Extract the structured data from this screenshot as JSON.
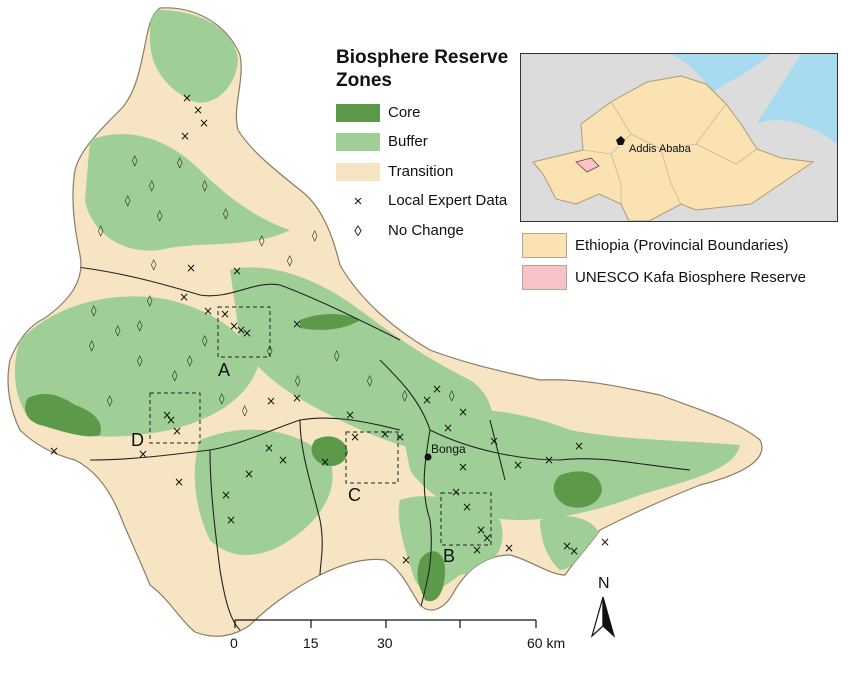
{
  "legend": {
    "title_line1": "Biosphere Reserve",
    "title_line2": "Zones",
    "items": [
      {
        "label": "Core",
        "color": "#5c9a4a"
      },
      {
        "label": "Buffer",
        "color": "#9fcf97"
      },
      {
        "label": "Transition",
        "color": "#f7e4c2"
      }
    ],
    "symbols": [
      {
        "symbol": "×",
        "label": "Local Expert Data"
      },
      {
        "symbol": "◊",
        "label": "No Change"
      }
    ]
  },
  "inset": {
    "city": "Addis Ababa",
    "legend": [
      {
        "label": "Ethiopia (Provincial Boundaries)",
        "color": "#fbe2b3"
      },
      {
        "label": "UNESCO Kafa Biosphere Reserve",
        "color": "#f7c3c6"
      }
    ],
    "colors": {
      "water": "#a8daf0",
      "land": "#dcdcdc",
      "ethiopia": "#fbe2b3"
    }
  },
  "map": {
    "town": "Bonga",
    "study_areas": [
      "A",
      "B",
      "C",
      "D"
    ],
    "north_label": "N"
  },
  "scale_bar": {
    "ticks": [
      "0",
      "15",
      "30",
      "60 km"
    ]
  }
}
